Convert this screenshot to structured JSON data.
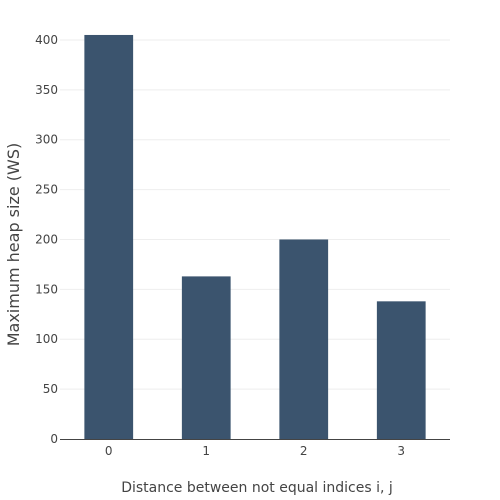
{
  "chart_data": {
    "type": "bar",
    "categories": [
      "0",
      "1",
      "2",
      "3"
    ],
    "values": [
      405,
      163,
      200,
      138
    ],
    "xlabel": "Distance between not equal indices i, j",
    "ylabel": "Maximum heap size (WS)",
    "ylim": [
      0,
      420
    ],
    "yticks": [
      0,
      50,
      100,
      150,
      200,
      250,
      300,
      350,
      400
    ],
    "grid": true,
    "bar_color": "#3b546e"
  }
}
